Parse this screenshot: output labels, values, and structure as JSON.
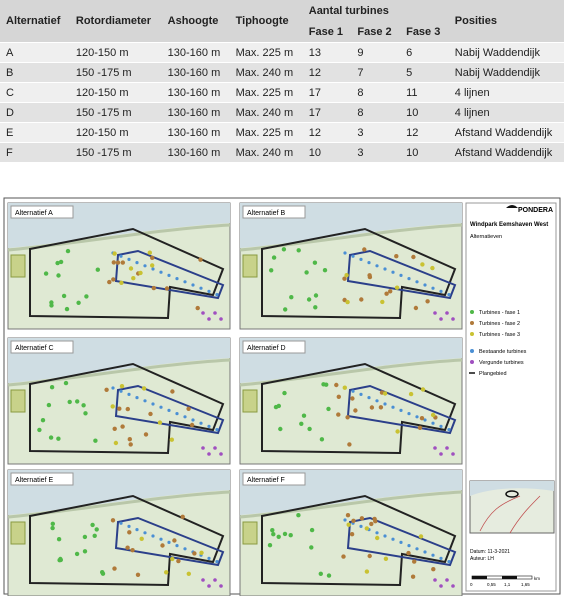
{
  "table": {
    "headers": [
      "Alternatief",
      "Rotordiameter",
      "Ashoogte",
      "Tiphoogte",
      "Aantal turbines",
      "Posities"
    ],
    "subheaders": [
      "Fase 1",
      "Fase 2",
      "Fase 3"
    ],
    "rows": [
      [
        "A",
        "120-150 m",
        "130-160 m",
        "Max. 225 m",
        13,
        9,
        6,
        "Nabij Waddendijk"
      ],
      [
        "B",
        "150 -175 m",
        "130-160 m",
        "Max. 240 m",
        12,
        7,
        5,
        "Nabij Waddendijk"
      ],
      [
        "C",
        "120-150 m",
        "130-160 m",
        "Max. 225 m",
        17,
        8,
        11,
        "4 lijnen"
      ],
      [
        "D",
        "150 -175 m",
        "130-160 m",
        "Max. 240 m",
        17,
        8,
        10,
        "4 lijnen"
      ],
      [
        "E",
        "120-150 m",
        "130-160 m",
        "Max. 225 m",
        12,
        3,
        12,
        "Afstand  Waddendijk"
      ],
      [
        "F",
        "150 -175 m",
        "130-160 m",
        "Max. 240 m",
        10,
        3,
        10,
        "Afstand  Waddendijk"
      ]
    ]
  },
  "figure": {
    "panels": [
      "Alternatief A",
      "Alternatief B",
      "Alternatief C",
      "Alternatief D",
      "Alternatief E",
      "Alternatief F"
    ],
    "logo": "PONDERA",
    "title": "Windpark Eemshaven West",
    "subtitle": "Alternatieven",
    "legend": [
      "Turbines - fase 1",
      "Turbines - fase 2",
      "Turbines - fase 3",
      "Bestaande turbines",
      "Vergunde turbines",
      "Plangebied"
    ],
    "date": "Datum: 11-3-2021",
    "author": "Auteur: LH",
    "scale": [
      "0",
      "0,55",
      "1,1",
      "1,65"
    ],
    "scale_unit": "km"
  }
}
